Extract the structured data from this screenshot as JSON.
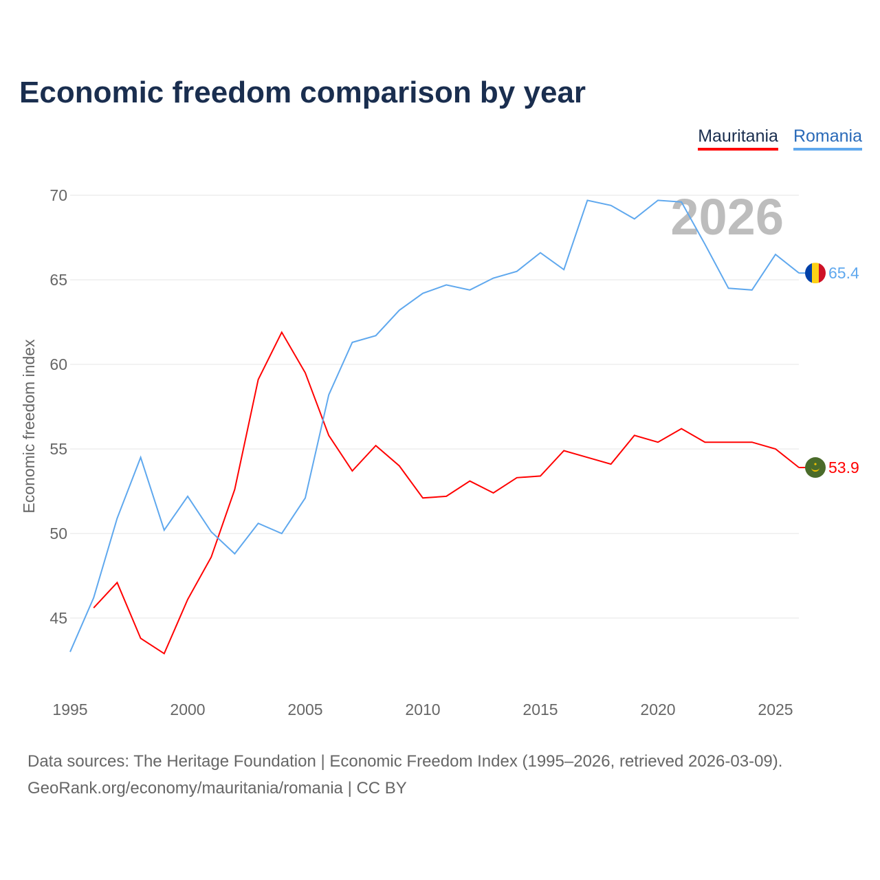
{
  "chart_data": {
    "type": "line",
    "title": "Economic freedom comparison by year",
    "ylabel": "Economic freedom index",
    "xlabel": "",
    "ylim": [
      40.5,
      70
    ],
    "xlim": [
      1995,
      2026
    ],
    "x_ticks": [
      1995,
      2000,
      2005,
      2010,
      2015,
      2020,
      2025
    ],
    "y_ticks": [
      45,
      50,
      55,
      60,
      65,
      70
    ],
    "grid": true,
    "legend_placement": "top-right",
    "year_watermark": "2026",
    "series": [
      {
        "name": "Mauritania",
        "color": "#ff0000",
        "flag": "mauritania-flag",
        "x": [
          1996,
          1997,
          1998,
          1999,
          2000,
          2001,
          2002,
          2003,
          2004,
          2005,
          2006,
          2007,
          2008,
          2009,
          2010,
          2011,
          2012,
          2013,
          2014,
          2015,
          2016,
          2017,
          2018,
          2019,
          2020,
          2021,
          2022,
          2023,
          2024,
          2025,
          2026
        ],
        "values": [
          45.6,
          47.1,
          43.8,
          42.9,
          46.1,
          48.6,
          52.6,
          59.1,
          61.9,
          59.5,
          55.8,
          53.7,
          55.2,
          54.0,
          52.1,
          52.2,
          53.1,
          52.4,
          53.3,
          53.4,
          54.9,
          54.5,
          54.1,
          55.8,
          55.4,
          56.2,
          55.4,
          55.4,
          55.4,
          55.0,
          53.9
        ],
        "end_label": "53.9"
      },
      {
        "name": "Romania",
        "color": "#5fa8ee",
        "flag": "romania-flag",
        "x": [
          1995,
          1996,
          1997,
          1998,
          1999,
          2000,
          2001,
          2002,
          2003,
          2004,
          2005,
          2006,
          2007,
          2008,
          2009,
          2010,
          2011,
          2012,
          2013,
          2014,
          2015,
          2016,
          2017,
          2018,
          2019,
          2020,
          2021,
          2022,
          2023,
          2024,
          2025,
          2026
        ],
        "values": [
          43.0,
          46.2,
          50.9,
          54.5,
          50.2,
          52.2,
          50.1,
          48.8,
          50.6,
          50.0,
          52.1,
          58.2,
          61.3,
          61.7,
          63.2,
          64.2,
          64.7,
          64.4,
          65.1,
          65.5,
          66.6,
          65.6,
          69.7,
          69.4,
          68.6,
          69.7,
          69.6,
          67.1,
          64.5,
          64.4,
          66.5,
          65.4
        ],
        "end_label": "65.4"
      }
    ]
  },
  "source": {
    "line1": "Data sources: The Heritage Foundation | Economic Freedom Index (1995–2026, retrieved 2026-03-09).",
    "line2": "GeoRank.org/economy/mauritania/romania | CC BY"
  }
}
